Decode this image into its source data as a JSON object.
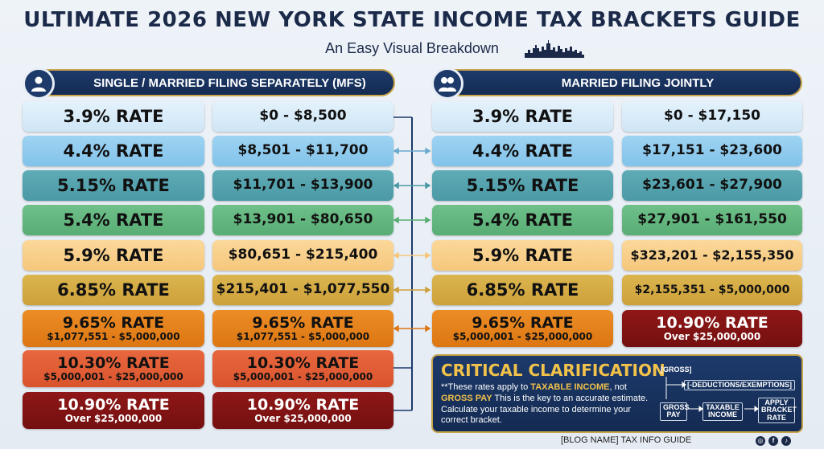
{
  "title": "ULTIMATE 2026 NEW YORK STATE INCOME TAX BRACKETS GUIDE",
  "subtitle": "An Easy Visual Breakdown",
  "single": {
    "header": "SINGLE / MARRIED FILING SEPARATELY (MFS)",
    "rows": [
      {
        "rate": "3.9% RATE",
        "range": "$0 - $8,500"
      },
      {
        "rate": "4.4% RATE",
        "range": "$8,501 - $11,700"
      },
      {
        "rate": "5.15% RATE",
        "range": "$11,701 - $13,900"
      },
      {
        "rate": "5.4% RATE",
        "range": "$13,901 - $80,650"
      },
      {
        "rate": "5.9% RATE",
        "range": "$80,651 - $215,400"
      },
      {
        "rate": "6.85% RATE",
        "range": "$215,401 - $1,077,550"
      },
      {
        "rate": "9.65% RATE",
        "sub": "$1,077,551 - $5,000,000",
        "range": "9.65% RATE",
        "range_sub": "$1,077,551 - $5,000,000"
      },
      {
        "rate": "10.30% RATE",
        "sub": "$5,000,001 - $25,000,000",
        "range": "10.30% RATE",
        "range_sub": "$5,000,001 - $25,000,000"
      },
      {
        "rate": "10.90% RATE",
        "sub": "Over $25,000,000",
        "range": "10.90% RATE",
        "range_sub": "Over $25,000,000"
      }
    ]
  },
  "joint": {
    "header": "MARRIED FILING JOINTLY",
    "rows": [
      {
        "rate": "3.9% RATE",
        "range": "$0 - $17,150"
      },
      {
        "rate": "4.4% RATE",
        "range": "$17,151 - $23,600"
      },
      {
        "rate": "5.15% RATE",
        "range": "$23,601 - $27,900"
      },
      {
        "rate": "5.4% RATE",
        "range": "$27,901 - $161,550"
      },
      {
        "rate": "5.9% RATE",
        "range": "$323,201 - $2,155,350"
      },
      {
        "rate": "6.85% RATE",
        "range": "$2,155,351 - $5,000,000"
      },
      {
        "rate": "9.65% RATE",
        "sub": "$5,000,001 - $25,000,000",
        "range": "10.90% RATE",
        "range_sub": "Over $25,000,000"
      }
    ]
  },
  "clarification": {
    "title": "CRITICAL CLARIFICATION",
    "text_pre": "**These rates apply to ",
    "text_bold1": "TAXABLE INCOME",
    "text_mid": ", not ",
    "text_bold2": "GROSS PAY",
    "text_post": " This is the key to an accurate estimate. Calculate your taxable income to determine your correct bracket.",
    "flow": {
      "gross_top": "[GROSS]",
      "deductions": "[-DEDUCTIONS/EXEMPTIONS]",
      "gross_pay": "GROSS PAY",
      "taxable": "TAXABLE INCOME",
      "apply": "APPLY BRACKET RATE"
    }
  },
  "footer": "[BLOG NAME] TAX INFO GUIDE",
  "social_icons": [
    "instagram-icon",
    "facebook-icon",
    "tiktok-icon"
  ],
  "colors": {
    "navy": "#1d3a6b",
    "gold": "#c8a44a",
    "r1": "#d8ecf9",
    "r2": "#8fcaee",
    "r3": "#55a2ae",
    "r4": "#63b67f",
    "r5": "#f8d08b",
    "r6": "#d4aa44",
    "r7": "#e4821c",
    "r8": "#e05d36",
    "r9": "#841313"
  }
}
